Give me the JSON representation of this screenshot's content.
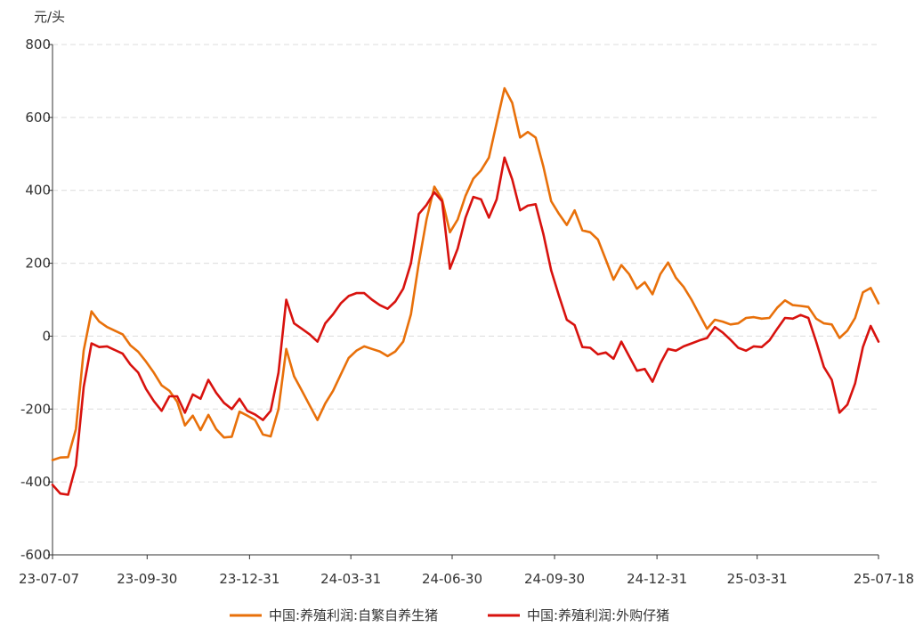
{
  "chart_data": {
    "type": "line",
    "ylabel": "元/头",
    "ylim": [
      -600,
      800
    ],
    "yticks": [
      -600,
      -400,
      -200,
      0,
      200,
      400,
      600,
      800
    ],
    "grid": "horizontal-dashed",
    "legend_position": "bottom-center",
    "x": [
      "2023-07-07",
      "2023-07-14",
      "2023-07-21",
      "2023-07-28",
      "2023-08-04",
      "2023-08-11",
      "2023-08-18",
      "2023-08-25",
      "2023-09-01",
      "2023-09-08",
      "2023-09-15",
      "2023-09-22",
      "2023-09-29",
      "2023-10-06",
      "2023-10-13",
      "2023-10-20",
      "2023-10-27",
      "2023-11-03",
      "2023-11-10",
      "2023-11-17",
      "2023-11-24",
      "2023-12-01",
      "2023-12-08",
      "2023-12-15",
      "2023-12-22",
      "2023-12-29",
      "2024-01-05",
      "2024-01-12",
      "2024-01-19",
      "2024-01-26",
      "2024-02-02",
      "2024-02-09",
      "2024-02-16",
      "2024-02-23",
      "2024-03-01",
      "2024-03-08",
      "2024-03-15",
      "2024-03-22",
      "2024-03-29",
      "2024-04-05",
      "2024-04-12",
      "2024-04-19",
      "2024-04-26",
      "2024-05-03",
      "2024-05-10",
      "2024-05-17",
      "2024-05-24",
      "2024-05-31",
      "2024-06-07",
      "2024-06-14",
      "2024-06-21",
      "2024-06-28",
      "2024-07-05",
      "2024-07-12",
      "2024-07-19",
      "2024-07-26",
      "2024-08-02",
      "2024-08-09",
      "2024-08-16",
      "2024-08-23",
      "2024-08-30",
      "2024-09-06",
      "2024-09-13",
      "2024-09-20",
      "2024-09-27",
      "2024-10-04",
      "2024-10-11",
      "2024-10-18",
      "2024-10-25",
      "2024-11-01",
      "2024-11-08",
      "2024-11-15",
      "2024-11-22",
      "2024-11-29",
      "2024-12-06",
      "2024-12-13",
      "2024-12-20",
      "2024-12-27",
      "2025-01-03",
      "2025-01-10",
      "2025-01-17",
      "2025-01-24",
      "2025-01-31",
      "2025-02-07",
      "2025-02-14",
      "2025-02-21",
      "2025-02-28",
      "2025-03-07",
      "2025-03-14",
      "2025-03-21",
      "2025-03-28",
      "2025-04-04",
      "2025-04-11",
      "2025-04-18",
      "2025-04-25",
      "2025-05-02",
      "2025-05-09",
      "2025-05-16",
      "2025-05-23",
      "2025-05-30",
      "2025-06-06",
      "2025-06-13",
      "2025-06-20",
      "2025-06-27",
      "2025-07-04",
      "2025-07-11",
      "2025-07-18"
    ],
    "xtick_labels": [
      "23-07-07",
      "23-09-30",
      "23-12-31",
      "24-03-31",
      "24-06-30",
      "24-09-30",
      "24-12-31",
      "25-03-31",
      "25-07-18"
    ],
    "xtick_dates": [
      "2023-07-07",
      "2023-09-30",
      "2023-12-31",
      "2024-03-31",
      "2024-06-30",
      "2024-09-30",
      "2024-12-31",
      "2025-03-31",
      "2025-07-18"
    ],
    "series": [
      {
        "name": "中国:养殖利润:自繁自养生猪",
        "color": "#E8700A",
        "values": [
          -340,
          -333,
          -332,
          -255,
          -40,
          68,
          40,
          25,
          15,
          5,
          -25,
          -43,
          -70,
          -100,
          -135,
          -150,
          -180,
          -245,
          -218,
          -258,
          -216,
          -255,
          -278,
          -276,
          -207,
          -218,
          -230,
          -270,
          -275,
          -200,
          -35,
          -110,
          -150,
          -190,
          -230,
          -185,
          -150,
          -105,
          -60,
          -40,
          -28,
          -35,
          -42,
          -55,
          -42,
          -15,
          60,
          200,
          320,
          410,
          375,
          285,
          320,
          385,
          432,
          455,
          490,
          585,
          680,
          640,
          545,
          560,
          545,
          465,
          370,
          335,
          305,
          345,
          290,
          285,
          265,
          210,
          155,
          195,
          170,
          130,
          148,
          115,
          170,
          202,
          160,
          135,
          100,
          60,
          20,
          45,
          40,
          32,
          35,
          50,
          52,
          48,
          50,
          78,
          98,
          85,
          83,
          80,
          48,
          35,
          32,
          -5,
          15,
          50,
          120,
          132,
          90
        ]
      },
      {
        "name": "中国:养殖利润:外购仔猪",
        "color": "#D8120E",
        "values": [
          -408,
          -432,
          -435,
          -355,
          -140,
          -20,
          -30,
          -28,
          -38,
          -48,
          -78,
          -100,
          -145,
          -178,
          -205,
          -165,
          -165,
          -210,
          -160,
          -172,
          -120,
          -155,
          -183,
          -200,
          -172,
          -205,
          -215,
          -230,
          -205,
          -100,
          100,
          35,
          20,
          5,
          -15,
          35,
          60,
          90,
          110,
          118,
          118,
          100,
          85,
          75,
          95,
          130,
          200,
          335,
          360,
          395,
          370,
          185,
          240,
          325,
          382,
          375,
          325,
          375,
          490,
          430,
          345,
          358,
          362,
          280,
          180,
          110,
          45,
          30,
          -30,
          -32,
          -50,
          -45,
          -62,
          -15,
          -55,
          -95,
          -90,
          -125,
          -75,
          -35,
          -40,
          -28,
          -20,
          -12,
          -5,
          25,
          10,
          -10,
          -32,
          -40,
          -28,
          -30,
          -12,
          20,
          50,
          48,
          58,
          50,
          -15,
          -85,
          -120,
          -210,
          -188,
          -130,
          -30,
          28,
          -15
        ]
      }
    ]
  }
}
